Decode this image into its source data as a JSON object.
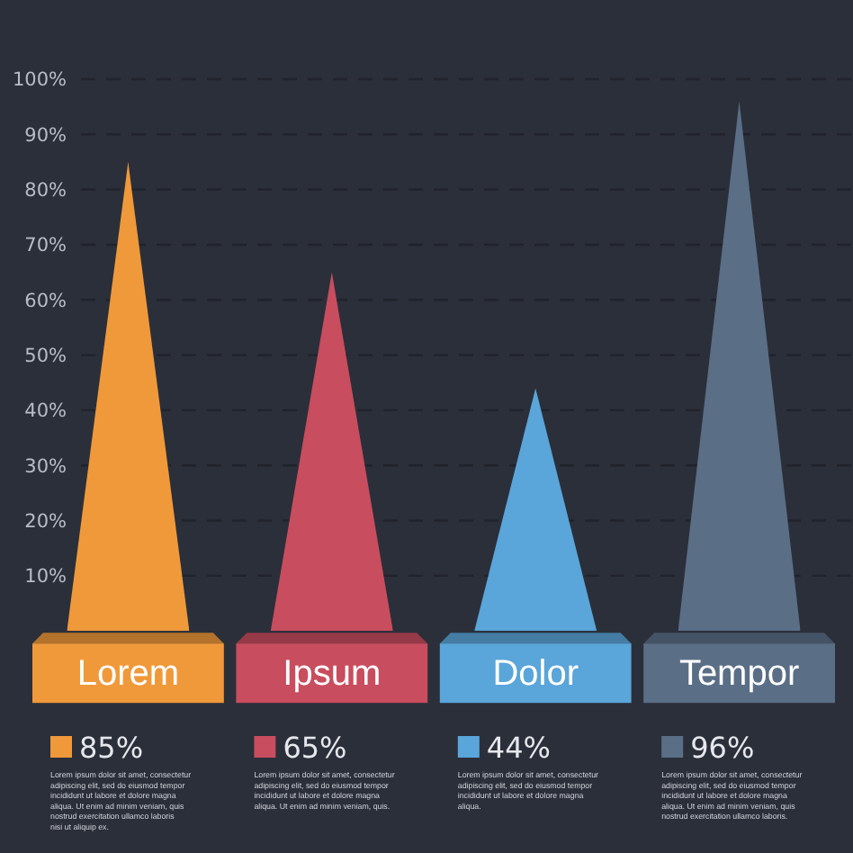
{
  "chart_data": {
    "type": "bar",
    "categories": [
      "Lorem",
      "Ipsum",
      "Dolor",
      "Tempor"
    ],
    "values": [
      85,
      65,
      44,
      96
    ],
    "colors": [
      "#f0993a",
      "#c84d5e",
      "#5aa5d9",
      "#5a6e86"
    ],
    "value_labels": [
      "85%",
      "65%",
      "44%",
      "96%"
    ],
    "ylim": [
      0,
      100
    ],
    "yticks": [
      {
        "value": 10,
        "label": "10%"
      },
      {
        "value": 20,
        "label": "20%"
      },
      {
        "value": 30,
        "label": "30%"
      },
      {
        "value": 40,
        "label": "40%"
      },
      {
        "value": 50,
        "label": "50%"
      },
      {
        "value": 60,
        "label": "60%"
      },
      {
        "value": 70,
        "label": "70%"
      },
      {
        "value": 80,
        "label": "80%"
      },
      {
        "value": 90,
        "label": "90%"
      },
      {
        "value": 100,
        "label": "100%"
      }
    ],
    "grid": "y",
    "annotations": [
      "Lorem ipsum dolor sit amet, consectetur adipiscing elit, sed do eiusmod tempor incididunt ut labore et dolore magna aliqua. Ut enim ad minim veniam, quis nostrud exercitation ullamco laboris nisi ut aliquip ex.",
      "Lorem ipsum dolor sit amet, consectetur adipiscing elit, sed do eiusmod tempor incididunt ut labore et dolore magna aliqua. Ut enim ad minim veniam, quis.",
      "Lorem ipsum dolor sit amet, consectetur adipiscing elit, sed do eiusmod tempor incididunt ut labore et dolore magna aliqua.",
      "Lorem ipsum dolor sit amet, consectetur adipiscing elit, sed do eiusmod tempor incididunt ut labore et dolore magna aliqua. Ut enim ad minim veniam, quis nostrud exercitation ullamco laboris."
    ]
  }
}
